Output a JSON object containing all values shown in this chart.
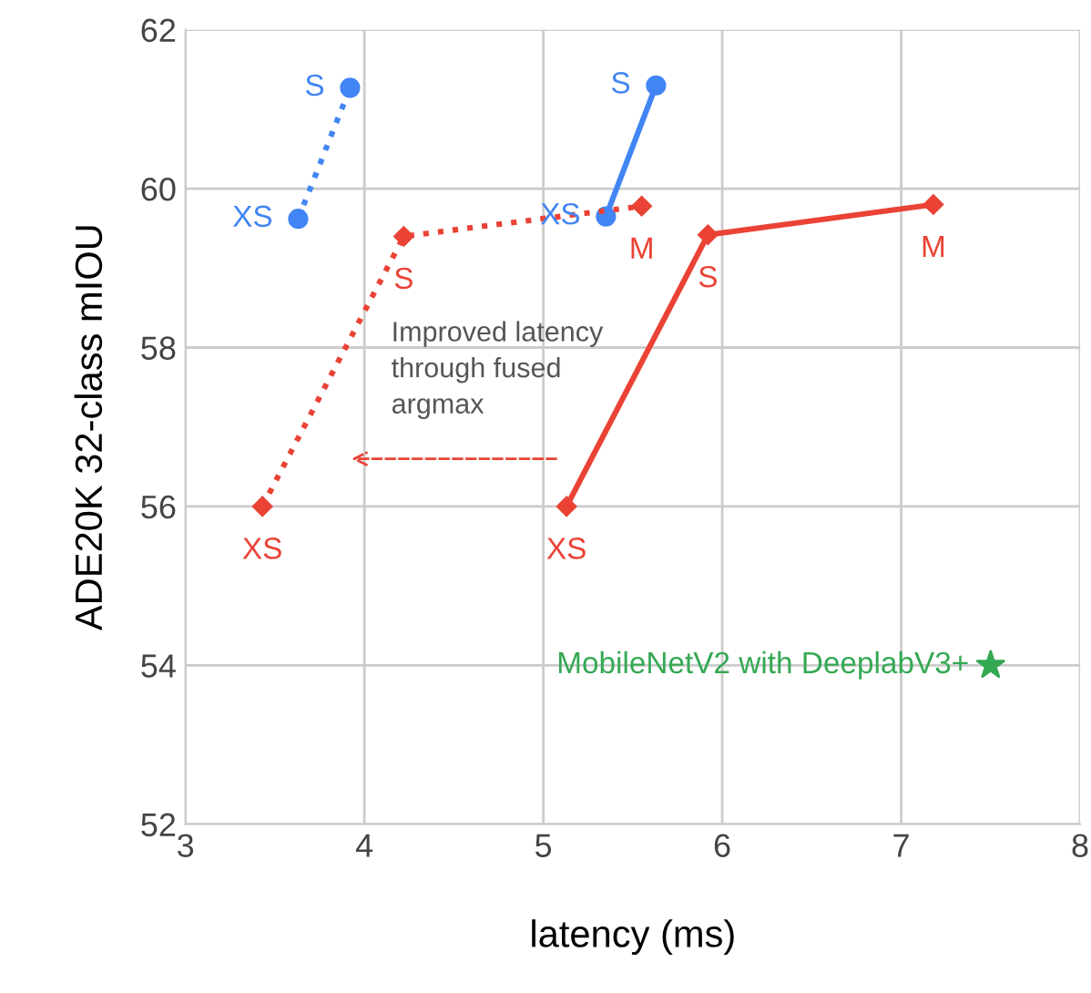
{
  "chart_data": {
    "type": "line",
    "xlabel": "latency (ms)",
    "ylabel": "ADE20K 32-class mIOU",
    "xlim": [
      3,
      8
    ],
    "ylim": [
      52,
      62
    ],
    "xticks": [
      3,
      4,
      5,
      6,
      7,
      8
    ],
    "yticks": [
      52,
      54,
      56,
      58,
      60,
      62
    ],
    "grid": true,
    "series": [
      {
        "color": "#4285f4",
        "x": [
          3.63,
          3.92
        ],
        "values": [
          59.62,
          61.27
        ],
        "marker": "circle",
        "line_style": "dotted"
      },
      {
        "color": "#4285f4",
        "x": [
          5.35,
          5.63
        ],
        "values": [
          59.65,
          61.3
        ],
        "marker": "circle",
        "line_style": "solid"
      },
      {
        "color": "#ea4335",
        "x": [
          3.43,
          4.22,
          5.55
        ],
        "values": [
          56.0,
          59.4,
          59.78
        ],
        "marker": "diamond",
        "line_style": "dotted"
      },
      {
        "color": "#ea4335",
        "x": [
          5.13,
          5.92,
          7.18
        ],
        "values": [
          56.0,
          59.42,
          59.8
        ],
        "marker": "diamond",
        "line_style": "solid"
      },
      {
        "type": "scatter",
        "name": "MobileNetV2 with DeeplabV3+",
        "color": "#34a853",
        "x": [
          7.5
        ],
        "values": [
          54.0
        ],
        "marker": "star"
      }
    ],
    "annotations": [
      {
        "text": "XS",
        "x": 3.63,
        "y": 59.62
      },
      {
        "text": "S",
        "x": 3.92,
        "y": 61.27
      },
      {
        "text": "XS",
        "x": 5.35,
        "y": 59.65
      },
      {
        "text": "S",
        "x": 5.63,
        "y": 61.3
      },
      {
        "text": "XS",
        "x": 3.43,
        "y": 56.0
      },
      {
        "text": "S",
        "x": 4.22,
        "y": 59.4
      },
      {
        "text": "M",
        "x": 5.55,
        "y": 59.78
      },
      {
        "text": "XS",
        "x": 5.13,
        "y": 56.0
      },
      {
        "text": "S",
        "x": 5.92,
        "y": 59.42
      },
      {
        "text": "M",
        "x": 7.18,
        "y": 59.8
      },
      "Improved latency\nthrough fused\nargmax"
    ]
  }
}
